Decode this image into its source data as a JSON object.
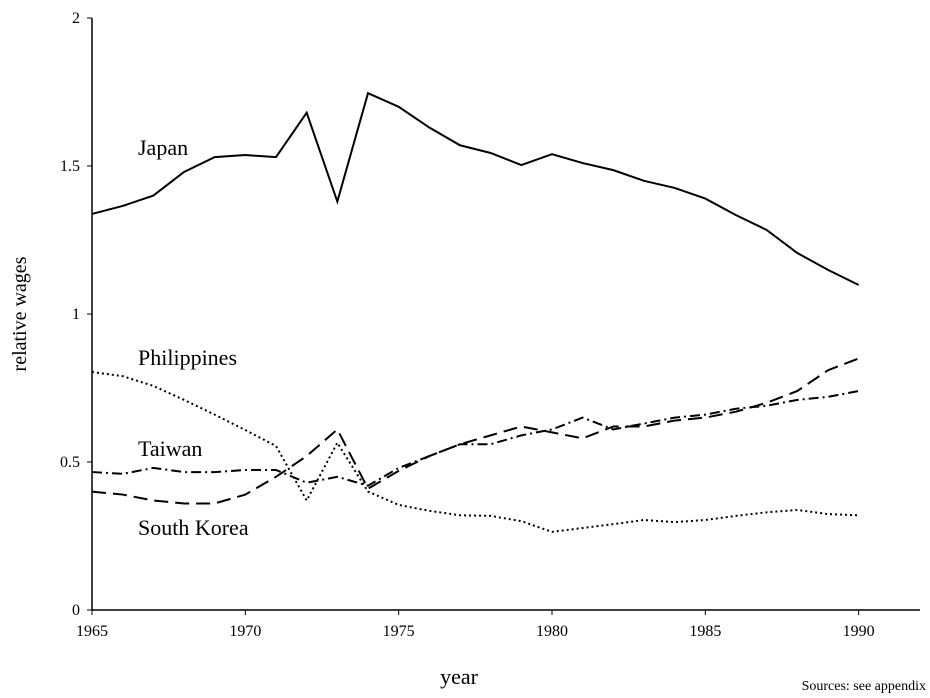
{
  "chart_data": {
    "type": "line",
    "xlabel": "year",
    "ylabel": "relative wages",
    "source": "Sources: see appendix",
    "annotations": [
      "Japan",
      "Philippines",
      "Taiwan",
      "South Korea"
    ],
    "x": [
      1965,
      1966,
      1967,
      1968,
      1969,
      1970,
      1971,
      1972,
      1973,
      1974,
      1975,
      1976,
      1977,
      1978,
      1979,
      1980,
      1981,
      1982,
      1983,
      1984,
      1985,
      1986,
      1987,
      1988,
      1989,
      1990
    ],
    "xlim": [
      1965,
      1992
    ],
    "xticks": [
      1965,
      1970,
      1975,
      1980,
      1985,
      1990
    ],
    "ylim": [
      0,
      2
    ],
    "yticks": [
      0,
      0.5,
      1,
      1.5,
      2
    ],
    "series": [
      {
        "name": "Japan",
        "color": "#000000",
        "dash": "solid",
        "values": [
          1.338,
          1.365,
          1.4,
          1.48,
          1.53,
          1.537,
          1.53,
          1.68,
          1.38,
          1.746,
          1.7,
          1.63,
          1.57,
          1.544,
          1.503,
          1.54,
          1.51,
          1.486,
          1.45,
          1.426,
          1.39,
          1.334,
          1.284,
          1.206,
          1.149,
          1.098
        ]
      },
      {
        "name": "Philippines",
        "color": "#000000",
        "dash": "dotted",
        "values": [
          0.804,
          0.79,
          0.757,
          0.71,
          0.66,
          0.608,
          0.554,
          0.37,
          0.565,
          0.4,
          0.355,
          0.335,
          0.32,
          0.318,
          0.3,
          0.264,
          0.277,
          0.29,
          0.304,
          0.297,
          0.304,
          0.318,
          0.33,
          0.338,
          0.324,
          0.32
        ]
      },
      {
        "name": "Taiwan",
        "color": "#000000",
        "dash": "dashdot",
        "values": [
          0.466,
          0.46,
          0.48,
          0.466,
          0.466,
          0.473,
          0.473,
          0.43,
          0.45,
          0.42,
          0.48,
          0.52,
          0.56,
          0.56,
          0.59,
          0.61,
          0.65,
          0.61,
          0.63,
          0.65,
          0.66,
          0.68,
          0.69,
          0.71,
          0.72,
          0.74
        ]
      },
      {
        "name": "South Korea",
        "color": "#000000",
        "dash": "dashed",
        "values": [
          0.4,
          0.39,
          0.37,
          0.36,
          0.36,
          0.39,
          0.45,
          0.52,
          0.61,
          0.41,
          0.47,
          0.52,
          0.56,
          0.59,
          0.62,
          0.6,
          0.58,
          0.62,
          0.62,
          0.64,
          0.65,
          0.67,
          0.7,
          0.74,
          0.81,
          0.85
        ]
      }
    ]
  }
}
